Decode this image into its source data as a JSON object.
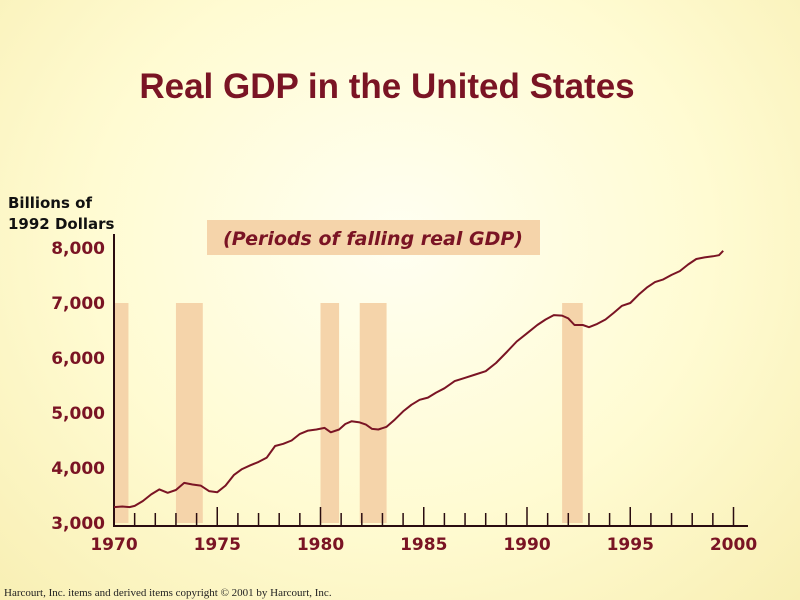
{
  "chart_data": {
    "type": "line",
    "title": "Real GDP in the United States",
    "ylabel_lines": [
      "Billions of",
      "1992 Dollars"
    ],
    "xlabel": "",
    "annotation": "(Periods of falling real GDP)",
    "xlim": [
      1970,
      2000
    ],
    "ylim": [
      3000,
      8000
    ],
    "y_ticks": [
      {
        "value": 3000,
        "label": "3,000"
      },
      {
        "value": 4000,
        "label": "4,000"
      },
      {
        "value": 5000,
        "label": "5,000"
      },
      {
        "value": 6000,
        "label": "6,000"
      },
      {
        "value": 7000,
        "label": "7,000"
      },
      {
        "value": 8000,
        "label": "8,000"
      }
    ],
    "x_ticks": [
      {
        "value": 1970,
        "label": "1970"
      },
      {
        "value": 1975,
        "label": "1975"
      },
      {
        "value": 1980,
        "label": "1980"
      },
      {
        "value": 1985,
        "label": "1985"
      },
      {
        "value": 1990,
        "label": "1990"
      },
      {
        "value": 1995,
        "label": "1995"
      },
      {
        "value": 2000,
        "label": "2000"
      }
    ],
    "recessions": [
      {
        "start": 1970.0,
        "end": 1970.7
      },
      {
        "start": 1973.0,
        "end": 1974.3
      },
      {
        "start": 1980.0,
        "end": 1980.9
      },
      {
        "start": 1981.9,
        "end": 1983.2
      },
      {
        "start": 1991.7,
        "end": 1992.7
      }
    ],
    "series": [
      {
        "name": "Real GDP",
        "x": [
          1970.0,
          1970.4,
          1970.75,
          1971.0,
          1971.4,
          1971.8,
          1972.2,
          1972.6,
          1973.0,
          1973.4,
          1973.8,
          1974.2,
          1974.6,
          1975.0,
          1975.4,
          1975.8,
          1976.2,
          1976.6,
          1977.0,
          1977.4,
          1977.8,
          1978.2,
          1978.6,
          1979.0,
          1979.4,
          1979.8,
          1980.2,
          1980.5,
          1980.9,
          1981.2,
          1981.5,
          1981.9,
          1982.2,
          1982.5,
          1982.8,
          1983.2,
          1983.6,
          1984.0,
          1984.4,
          1984.8,
          1985.2,
          1985.6,
          1986.0,
          1986.5,
          1987.0,
          1987.5,
          1988.0,
          1988.5,
          1989.0,
          1989.5,
          1990.0,
          1990.5,
          1990.9,
          1991.3,
          1991.7,
          1992.0,
          1992.3,
          1992.7,
          1993.0,
          1993.4,
          1993.8,
          1994.2,
          1994.6,
          1995.0,
          1995.4,
          1995.8,
          1996.2,
          1996.6,
          1997.0,
          1997.4,
          1997.8,
          1998.2,
          1998.6,
          1999.0,
          1999.3,
          1999.5
        ],
        "values": [
          3290,
          3300,
          3290,
          3310,
          3400,
          3520,
          3610,
          3550,
          3600,
          3730,
          3700,
          3680,
          3580,
          3560,
          3680,
          3870,
          3980,
          4050,
          4110,
          4190,
          4400,
          4440,
          4500,
          4620,
          4680,
          4700,
          4730,
          4650,
          4700,
          4800,
          4850,
          4830,
          4790,
          4710,
          4700,
          4750,
          4880,
          5030,
          5150,
          5240,
          5280,
          5370,
          5450,
          5580,
          5640,
          5700,
          5760,
          5910,
          6100,
          6300,
          6450,
          6600,
          6700,
          6780,
          6770,
          6720,
          6600,
          6600,
          6560,
          6620,
          6700,
          6820,
          6950,
          7000,
          7150,
          7280,
          7380,
          7430,
          7510,
          7580,
          7700,
          7800,
          7830,
          7850,
          7870,
          7950
        ]
      }
    ]
  },
  "footer": "Harcourt, Inc. items and derived items  copyright © 2001  by Harcourt, Inc.",
  "colors": {
    "title": "#7a1424",
    "line": "#7a1424",
    "recession_band": "#f5d4aa",
    "annotation_bg": "#f5d4aa",
    "axis": "#2a0c10"
  }
}
